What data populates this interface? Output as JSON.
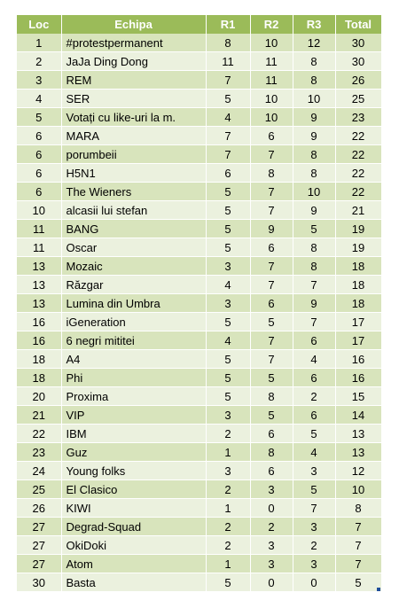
{
  "table": {
    "headers": [
      "Loc",
      "Echipa",
      "R1",
      "R2",
      "R3",
      "Total"
    ],
    "rows": [
      [
        "1",
        "#protestpermanent",
        "8",
        "10",
        "12",
        "30"
      ],
      [
        "2",
        "JaJa Ding Dong",
        "11",
        "11",
        "8",
        "30"
      ],
      [
        "3",
        "REM",
        "7",
        "11",
        "8",
        "26"
      ],
      [
        "4",
        "SER",
        "5",
        "10",
        "10",
        "25"
      ],
      [
        "5",
        "Votați cu like-uri la m.",
        "4",
        "10",
        "9",
        "23"
      ],
      [
        "6",
        "MARA",
        "7",
        "6",
        "9",
        "22"
      ],
      [
        "6",
        "porumbeii",
        "7",
        "7",
        "8",
        "22"
      ],
      [
        "6",
        "H5N1",
        "6",
        "8",
        "8",
        "22"
      ],
      [
        "6",
        "The Wieners",
        "5",
        "7",
        "10",
        "22"
      ],
      [
        "10",
        "alcasii lui stefan",
        "5",
        "7",
        "9",
        "21"
      ],
      [
        "11",
        "BANG",
        "5",
        "9",
        "5",
        "19"
      ],
      [
        "11",
        "Oscar",
        "5",
        "6",
        "8",
        "19"
      ],
      [
        "13",
        "Mozaic",
        "3",
        "7",
        "8",
        "18"
      ],
      [
        "13",
        "Răzgar",
        "4",
        "7",
        "7",
        "18"
      ],
      [
        "13",
        "Lumina din Umbra",
        "3",
        "6",
        "9",
        "18"
      ],
      [
        "16",
        "iGeneration",
        "5",
        "5",
        "7",
        "17"
      ],
      [
        "16",
        "6 negri mititei",
        "4",
        "7",
        "6",
        "17"
      ],
      [
        "18",
        "A4",
        "5",
        "7",
        "4",
        "16"
      ],
      [
        "18",
        "Phi",
        "5",
        "5",
        "6",
        "16"
      ],
      [
        "20",
        "Proxima",
        "5",
        "8",
        "2",
        "15"
      ],
      [
        "21",
        "VIP",
        "3",
        "5",
        "6",
        "14"
      ],
      [
        "22",
        "IBM",
        "2",
        "6",
        "5",
        "13"
      ],
      [
        "23",
        "Guz",
        "1",
        "8",
        "4",
        "13"
      ],
      [
        "24",
        "Young folks",
        "3",
        "6",
        "3",
        "12"
      ],
      [
        "25",
        "El Clasico",
        "2",
        "3",
        "5",
        "10"
      ],
      [
        "26",
        "KIWI",
        "1",
        "0",
        "7",
        "8"
      ],
      [
        "27",
        "Degrad-Squad",
        "2",
        "2",
        "3",
        "7"
      ],
      [
        "27",
        "OkiDoki",
        "2",
        "3",
        "2",
        "7"
      ],
      [
        "27",
        "Atom",
        "1",
        "3",
        "3",
        "7"
      ],
      [
        "30",
        "Basta",
        "5",
        "0",
        "0",
        "5"
      ]
    ]
  },
  "colors": {
    "header_bg": "#9bbb59",
    "row_odd": "#d8e4bc",
    "row_even": "#ebf1de"
  }
}
